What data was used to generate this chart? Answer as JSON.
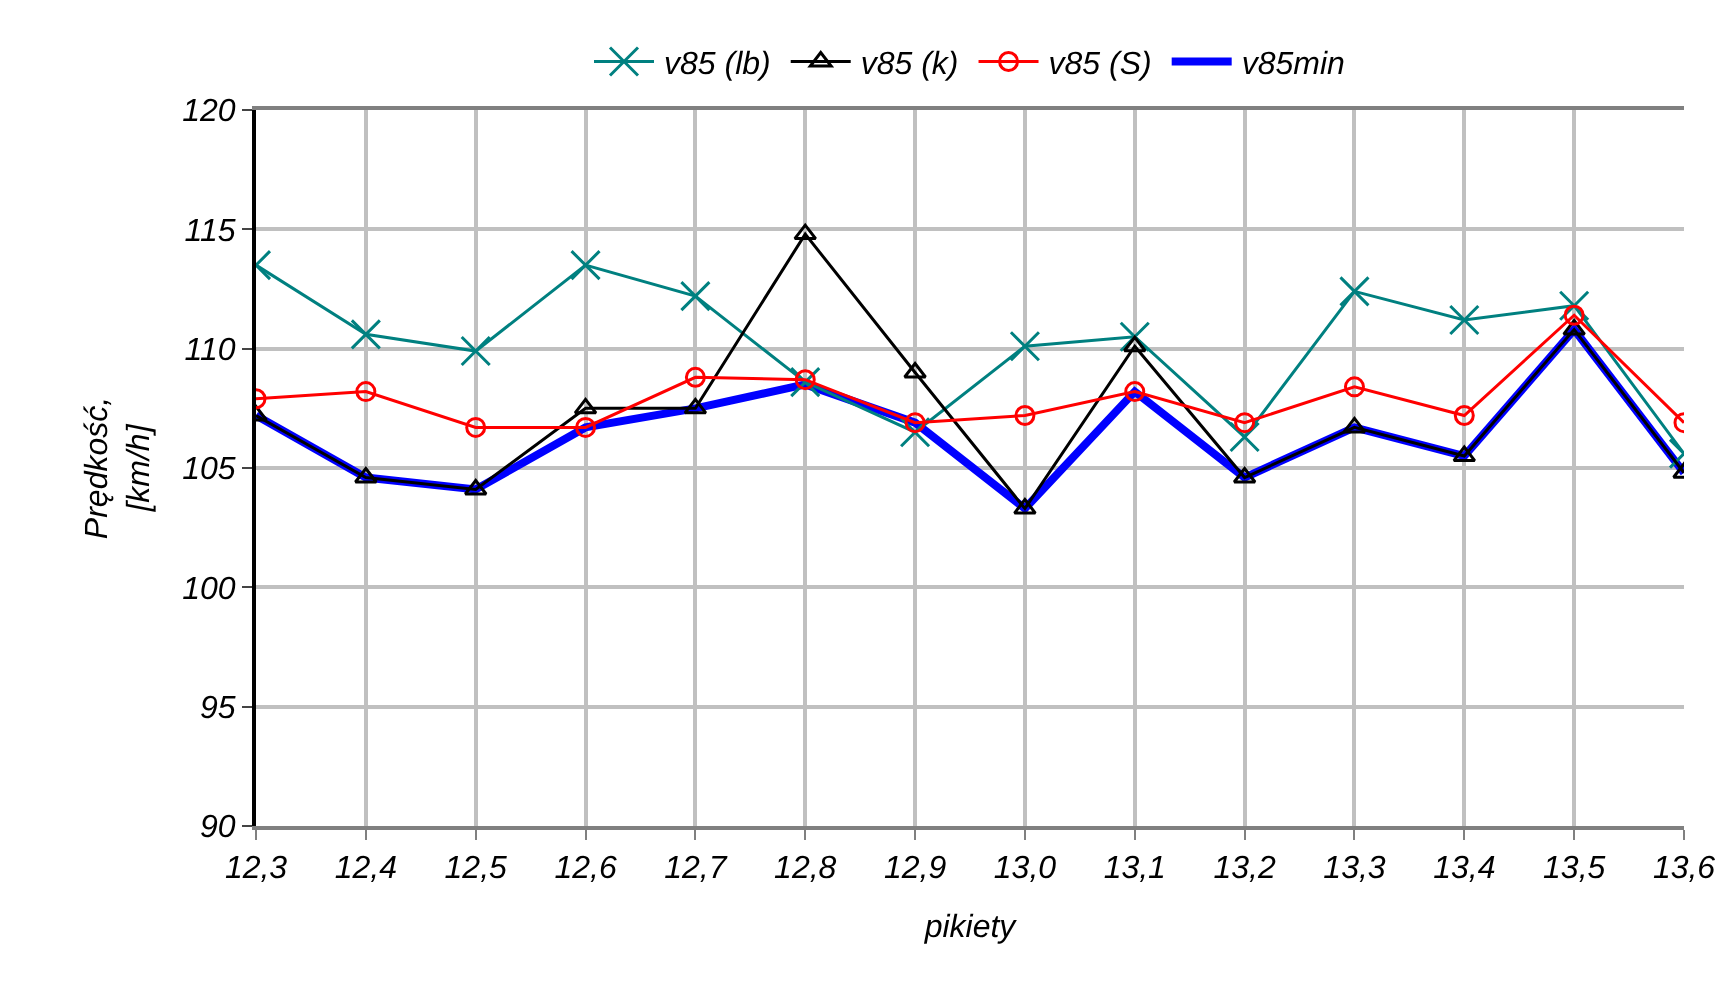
{
  "chart_data": {
    "type": "line",
    "xlabel": "pikiety",
    "ylabel": "Prędkość, [km/h]",
    "categories": [
      "12,3",
      "12,4",
      "12,5",
      "12,6",
      "12,7",
      "12,8",
      "12,9",
      "13,0",
      "13,1",
      "13,2",
      "13,3",
      "13,4",
      "13,5",
      "13,6"
    ],
    "series": [
      {
        "name": "v85 (lb)",
        "color": "#008080",
        "marker": "cross",
        "values": [
          113.5,
          110.6,
          109.9,
          113.5,
          112.2,
          108.6,
          106.5,
          110.1,
          110.5,
          106.3,
          112.4,
          111.2,
          111.8,
          105.6
        ]
      },
      {
        "name": "v85 (k)",
        "color": "#000000",
        "marker": "triangle",
        "values": [
          107.2,
          104.6,
          104.1,
          107.5,
          107.5,
          114.8,
          109.0,
          103.3,
          110.1,
          104.6,
          106.7,
          105.5,
          110.8,
          104.8
        ]
      },
      {
        "name": "v85 (S)",
        "color": "#ff0000",
        "marker": "circle",
        "values": [
          107.9,
          108.2,
          106.7,
          106.7,
          108.8,
          108.7,
          106.9,
          107.2,
          108.2,
          106.9,
          108.4,
          107.2,
          111.4,
          106.9
        ]
      },
      {
        "name": "v85min",
        "color": "#0000ff",
        "marker": "none",
        "values": [
          107.2,
          104.6,
          104.1,
          106.7,
          107.5,
          108.5,
          106.9,
          103.3,
          108.2,
          104.6,
          106.7,
          105.5,
          110.8,
          104.8
        ]
      }
    ],
    "ylim": [
      90,
      120
    ],
    "yticks": [
      90,
      95,
      100,
      105,
      110,
      115,
      120
    ],
    "grid": true,
    "legend": "top"
  }
}
